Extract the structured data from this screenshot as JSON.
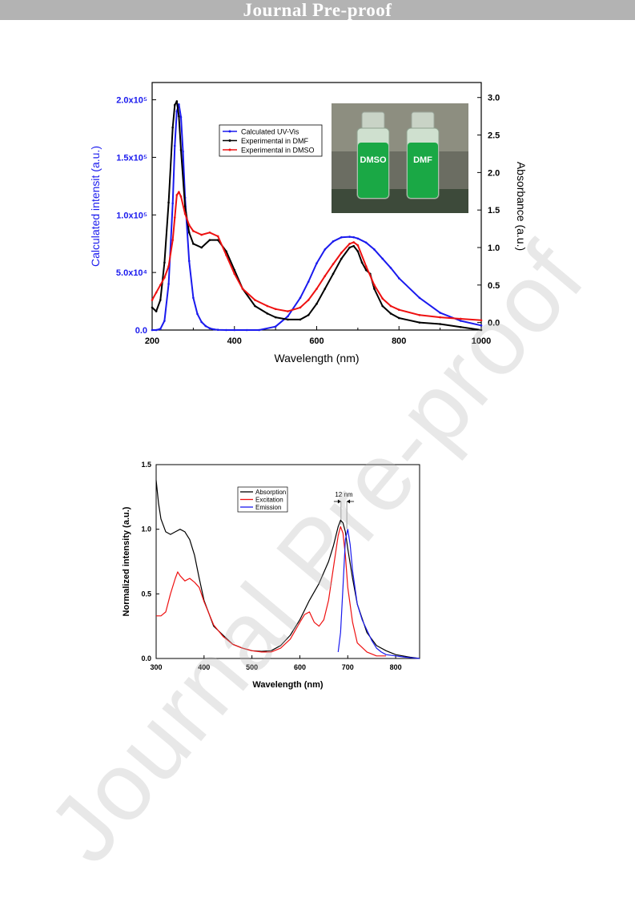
{
  "header": {
    "banner": "Journal Pre-proof"
  },
  "watermark": "Journal Pre-proof",
  "colors": {
    "blue": "#1a1aee",
    "black": "#000000",
    "red": "#ee1111",
    "banner": "#b3b3b3"
  },
  "photo_labels": {
    "left": "DMSO",
    "right": "DMF"
  },
  "chart_data": [
    {
      "type": "line",
      "xlabel": "Wavelength (nm)",
      "ylabel_left": "Calculated intensit (a.u.)",
      "ylabel_right": "Absorbance (a.u.)",
      "xlim": [
        200,
        1000
      ],
      "ylim_left": [
        0,
        215000
      ],
      "ylim_right": [
        -0.1,
        3.2
      ],
      "x_ticks": [
        "200",
        "400",
        "600",
        "800",
        "1000"
      ],
      "y_ticks_left": [
        {
          "value": 0,
          "label": "0.0"
        },
        {
          "value": 50000,
          "label": "5.0x10⁴"
        },
        {
          "value": 100000,
          "label": "1.0x10⁵"
        },
        {
          "value": 150000,
          "label": "1.5x10⁵"
        },
        {
          "value": 200000,
          "label": "2.0x10⁵"
        }
      ],
      "y_ticks_right": [
        "0.0",
        "0.5",
        "1.0",
        "1.5",
        "2.0",
        "2.5",
        "3.0"
      ],
      "legend_position": "top-left",
      "series": [
        {
          "name": "Calculated UV-Vis",
          "axis": "left",
          "color": "#1a1aee",
          "marker": "dot",
          "x": [
            200,
            210,
            220,
            230,
            240,
            250,
            255,
            260,
            265,
            270,
            275,
            280,
            290,
            300,
            310,
            320,
            330,
            340,
            350,
            360,
            380,
            400,
            430,
            460,
            500,
            530,
            560,
            580,
            600,
            620,
            640,
            660,
            680,
            690,
            700,
            720,
            740,
            760,
            780,
            800,
            850,
            900,
            950,
            1000
          ],
          "y": [
            0,
            0,
            1000,
            8000,
            40000,
            110000,
            160000,
            190000,
            196000,
            185000,
            155000,
            115000,
            60000,
            28000,
            14000,
            7000,
            3500,
            1500,
            600,
            200,
            0,
            0,
            0,
            0,
            3000,
            12000,
            28000,
            42000,
            58000,
            70000,
            77000,
            80500,
            81000,
            80600,
            79500,
            76000,
            70000,
            62000,
            54000,
            45000,
            28000,
            15000,
            8000,
            4000
          ]
        },
        {
          "name": "Experimental in DMF",
          "axis": "right",
          "color": "#000000",
          "marker": "dot",
          "x": [
            200,
            210,
            220,
            230,
            240,
            250,
            255,
            260,
            265,
            270,
            280,
            290,
            300,
            320,
            340,
            360,
            380,
            400,
            420,
            450,
            480,
            500,
            530,
            560,
            580,
            600,
            620,
            640,
            660,
            680,
            690,
            700,
            710,
            720,
            730,
            740,
            760,
            780,
            800,
            850,
            900,
            950,
            1000
          ],
          "y": [
            0.2,
            0.15,
            0.3,
            0.8,
            1.6,
            2.6,
            2.9,
            2.95,
            2.75,
            2.3,
            1.55,
            1.2,
            1.05,
            1.0,
            1.1,
            1.1,
            0.95,
            0.7,
            0.45,
            0.22,
            0.12,
            0.07,
            0.04,
            0.04,
            0.1,
            0.25,
            0.45,
            0.65,
            0.85,
            1.0,
            1.02,
            0.95,
            0.8,
            0.7,
            0.65,
            0.45,
            0.22,
            0.12,
            0.06,
            0.0,
            -0.02,
            -0.06,
            -0.1
          ]
        },
        {
          "name": "Experimental in DMSO",
          "axis": "right",
          "color": "#ee1111",
          "marker": "dot",
          "x": [
            200,
            210,
            220,
            230,
            240,
            250,
            255,
            260,
            265,
            270,
            280,
            290,
            300,
            320,
            340,
            360,
            380,
            400,
            420,
            450,
            480,
            500,
            530,
            560,
            580,
            600,
            620,
            640,
            660,
            680,
            690,
            700,
            720,
            740,
            760,
            780,
            800,
            850,
            900,
            950,
            1000
          ],
          "y": [
            0.3,
            0.4,
            0.5,
            0.6,
            0.75,
            1.1,
            1.4,
            1.7,
            1.74,
            1.68,
            1.45,
            1.3,
            1.22,
            1.17,
            1.2,
            1.15,
            0.9,
            0.65,
            0.45,
            0.3,
            0.22,
            0.18,
            0.15,
            0.2,
            0.3,
            0.45,
            0.62,
            0.78,
            0.93,
            1.05,
            1.07,
            1.03,
            0.75,
            0.5,
            0.32,
            0.22,
            0.17,
            0.1,
            0.07,
            0.05,
            0.03
          ]
        }
      ]
    },
    {
      "type": "line",
      "xlabel": "Wavelength (nm)",
      "ylabel": "Normalized intensity (a.u.)",
      "xlim": [
        300,
        850
      ],
      "ylim": [
        0,
        1.5
      ],
      "x_ticks": [
        "300",
        "400",
        "500",
        "600",
        "700",
        "800"
      ],
      "y_ticks": [
        "0.0",
        "0.5",
        "1.0",
        "1.5"
      ],
      "legend_position": "top-center",
      "annotation": "12 nm",
      "series": [
        {
          "name": "Absorption",
          "color": "#000000",
          "x": [
            300,
            305,
            310,
            320,
            330,
            340,
            350,
            360,
            370,
            380,
            390,
            400,
            420,
            440,
            460,
            480,
            500,
            520,
            540,
            560,
            580,
            600,
            620,
            640,
            660,
            670,
            680,
            685,
            690,
            695,
            700,
            710,
            720,
            740,
            760,
            780,
            800,
            830,
            850
          ],
          "y": [
            1.38,
            1.2,
            1.08,
            0.98,
            0.96,
            0.98,
            1.0,
            0.98,
            0.92,
            0.8,
            0.62,
            0.45,
            0.25,
            0.18,
            0.11,
            0.08,
            0.06,
            0.055,
            0.06,
            0.1,
            0.18,
            0.3,
            0.45,
            0.58,
            0.75,
            0.87,
            1.02,
            1.07,
            1.05,
            0.98,
            0.85,
            0.62,
            0.42,
            0.2,
            0.1,
            0.06,
            0.03,
            0.01,
            0.0
          ]
        },
        {
          "name": "Excitation",
          "color": "#ee1111",
          "x": [
            300,
            310,
            320,
            330,
            340,
            345,
            350,
            360,
            370,
            380,
            390,
            400,
            410,
            420,
            440,
            460,
            480,
            500,
            520,
            540,
            560,
            580,
            600,
            610,
            620,
            630,
            640,
            650,
            660,
            670,
            680,
            685,
            690,
            695,
            700,
            710,
            720,
            740,
            760,
            780
          ],
          "y": [
            0.33,
            0.33,
            0.36,
            0.5,
            0.62,
            0.67,
            0.64,
            0.6,
            0.62,
            0.59,
            0.55,
            0.44,
            0.35,
            0.26,
            0.17,
            0.11,
            0.08,
            0.06,
            0.05,
            0.05,
            0.08,
            0.15,
            0.28,
            0.34,
            0.36,
            0.28,
            0.25,
            0.3,
            0.45,
            0.7,
            0.95,
            1.02,
            0.97,
            0.8,
            0.55,
            0.28,
            0.12,
            0.05,
            0.02,
            0.02
          ]
        },
        {
          "name": "Emission",
          "color": "#1a1aee",
          "x": [
            680,
            685,
            690,
            695,
            700,
            705,
            710,
            720,
            730,
            740,
            750,
            760,
            770,
            780,
            800,
            820,
            850
          ],
          "y": [
            0.05,
            0.2,
            0.55,
            0.92,
            1.0,
            0.88,
            0.68,
            0.42,
            0.3,
            0.22,
            0.14,
            0.08,
            0.05,
            0.03,
            0.02,
            0.01,
            0.0
          ]
        }
      ]
    }
  ]
}
